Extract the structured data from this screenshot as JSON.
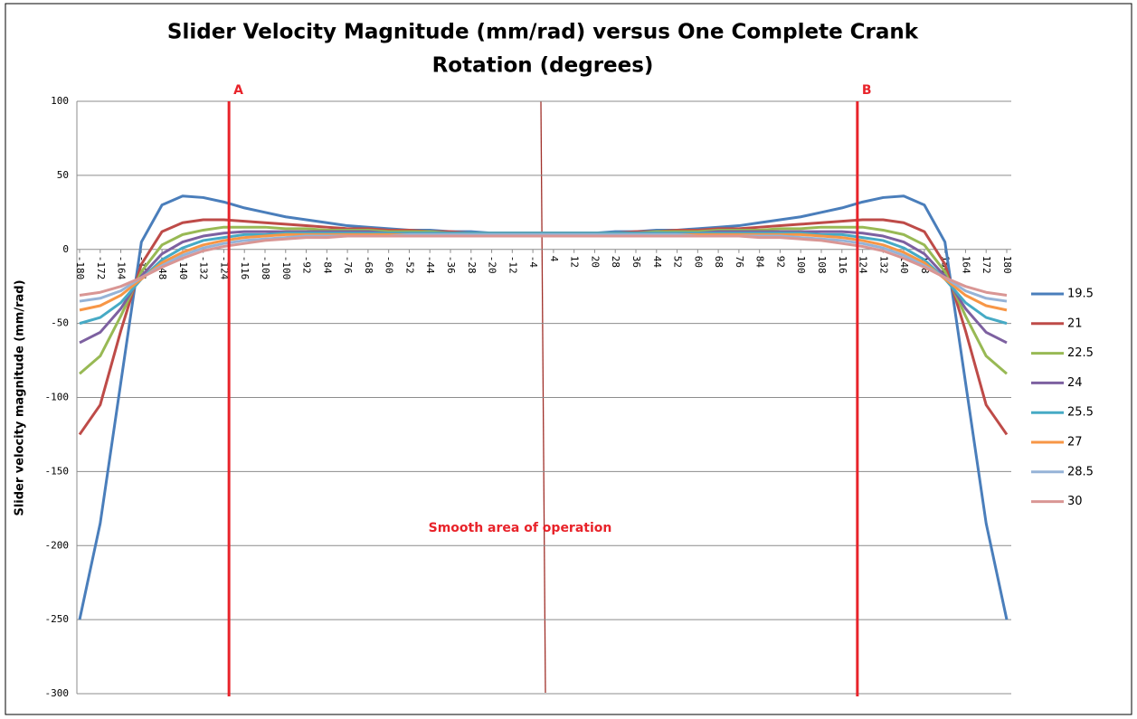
{
  "chart_data": {
    "type": "line",
    "title": [
      "Slider Velocity Magnitude (mm/rad) versus One Complete Crank",
      "Rotation (degrees)"
    ],
    "y_label": "Slider velocity magnitude (mm/rad)",
    "x": [
      -180,
      -172,
      -164,
      -156,
      -148,
      -140,
      -132,
      -124,
      -116,
      -108,
      -100,
      -92,
      -84,
      -76,
      -68,
      -60,
      -52,
      -44,
      -36,
      -28,
      -20,
      -12,
      -4,
      4,
      12,
      20,
      28,
      36,
      44,
      52,
      60,
      68,
      76,
      84,
      92,
      100,
      108,
      116,
      124,
      132,
      140,
      148,
      156,
      164,
      172,
      180
    ],
    "xlim": [
      -180,
      180
    ],
    "xticks": [
      -180,
      -172,
      -164,
      -156,
      -148,
      -140,
      -132,
      -124,
      -116,
      -108,
      -100,
      -92,
      -84,
      -76,
      -68,
      -60,
      -52,
      -44,
      -36,
      -28,
      -20,
      -12,
      -4,
      4,
      12,
      20,
      28,
      36,
      44,
      52,
      60,
      68,
      76,
      84,
      92,
      100,
      108,
      116,
      124,
      132,
      140,
      148,
      156,
      164,
      172,
      180
    ],
    "ylim": [
      -300,
      100
    ],
    "yticks": [
      -300,
      -250,
      -200,
      -150,
      -100,
      -50,
      0,
      50,
      100
    ],
    "grid": true,
    "legend": "right",
    "series": [
      {
        "name": "19.5",
        "color": "#4a7ebb",
        "values": [
          -250,
          -185,
          -90,
          5,
          30,
          36,
          35,
          32,
          28,
          25,
          22,
          20,
          18,
          16,
          15,
          14,
          13,
          13,
          12,
          12,
          11,
          11,
          11,
          11,
          11,
          11,
          12,
          12,
          13,
          13,
          14,
          15,
          16,
          18,
          20,
          22,
          25,
          28,
          32,
          35,
          36,
          30,
          5,
          -90,
          -185,
          -250
        ]
      },
      {
        "name": "21",
        "color": "#be4b48",
        "values": [
          -125,
          -105,
          -55,
          -10,
          12,
          18,
          20,
          20,
          19,
          18,
          17,
          16,
          15,
          14,
          14,
          13,
          13,
          12,
          12,
          11,
          11,
          11,
          11,
          11,
          11,
          11,
          11,
          12,
          12,
          13,
          13,
          14,
          14,
          15,
          16,
          17,
          18,
          19,
          20,
          20,
          18,
          12,
          -10,
          -55,
          -105,
          -125
        ]
      },
      {
        "name": "22.5",
        "color": "#98b954",
        "values": [
          -84,
          -72,
          -45,
          -15,
          3,
          10,
          13,
          15,
          15,
          15,
          14,
          14,
          13,
          13,
          13,
          12,
          12,
          12,
          11,
          11,
          11,
          11,
          11,
          11,
          11,
          11,
          11,
          11,
          12,
          12,
          12,
          13,
          13,
          13,
          14,
          14,
          15,
          15,
          15,
          13,
          10,
          3,
          -15,
          -45,
          -72,
          -84
        ]
      },
      {
        "name": "24",
        "color": "#7d60a0",
        "values": [
          -63,
          -56,
          -40,
          -18,
          -3,
          5,
          9,
          11,
          12,
          12,
          12,
          12,
          12,
          12,
          12,
          11,
          11,
          11,
          11,
          11,
          11,
          11,
          11,
          11,
          11,
          11,
          11,
          11,
          11,
          11,
          11,
          12,
          12,
          12,
          12,
          12,
          12,
          12,
          11,
          9,
          5,
          -3,
          -18,
          -40,
          -56,
          -63
        ]
      },
      {
        "name": "25.5",
        "color": "#46aac5",
        "values": [
          -50,
          -46,
          -36,
          -20,
          -7,
          1,
          6,
          8,
          10,
          10,
          11,
          11,
          11,
          11,
          11,
          11,
          11,
          11,
          11,
          11,
          11,
          11,
          11,
          11,
          11,
          11,
          11,
          11,
          11,
          11,
          11,
          11,
          11,
          11,
          11,
          11,
          10,
          10,
          8,
          6,
          1,
          -7,
          -20,
          -36,
          -46,
          -50
        ]
      },
      {
        "name": "27",
        "color": "#f79646",
        "values": [
          -41,
          -38,
          -31,
          -20,
          -9,
          -2,
          3,
          6,
          8,
          9,
          10,
          10,
          10,
          10,
          10,
          10,
          10,
          10,
          10,
          10,
          10,
          10,
          10,
          10,
          10,
          10,
          10,
          10,
          10,
          10,
          10,
          10,
          10,
          10,
          10,
          10,
          9,
          8,
          6,
          3,
          -2,
          -9,
          -20,
          -31,
          -38,
          -41
        ]
      },
      {
        "name": "28.5",
        "color": "#95b3d7",
        "values": [
          -35,
          -33,
          -28,
          -19,
          -11,
          -4,
          1,
          4,
          6,
          7,
          8,
          9,
          9,
          9,
          9,
          9,
          10,
          10,
          10,
          10,
          10,
          10,
          10,
          10,
          10,
          10,
          10,
          10,
          10,
          10,
          9,
          9,
          9,
          9,
          9,
          8,
          7,
          6,
          4,
          1,
          -4,
          -11,
          -19,
          -28,
          -33,
          -35
        ]
      },
      {
        "name": "30",
        "color": "#d99694",
        "values": [
          -31,
          -29,
          -25,
          -19,
          -12,
          -6,
          -1,
          2,
          4,
          6,
          7,
          8,
          8,
          9,
          9,
          9,
          9,
          9,
          9,
          9,
          9,
          9,
          9,
          9,
          9,
          9,
          9,
          9,
          9,
          9,
          9,
          9,
          9,
          8,
          8,
          7,
          6,
          4,
          2,
          -1,
          -6,
          -12,
          -19,
          -25,
          -29,
          -31
        ]
      }
    ],
    "annotations": [
      {
        "label": "A",
        "x": -122,
        "color": "#e8232a"
      },
      {
        "label": "B",
        "x": 122,
        "color": "#e8232a"
      }
    ],
    "note": "Smooth area of operation"
  }
}
